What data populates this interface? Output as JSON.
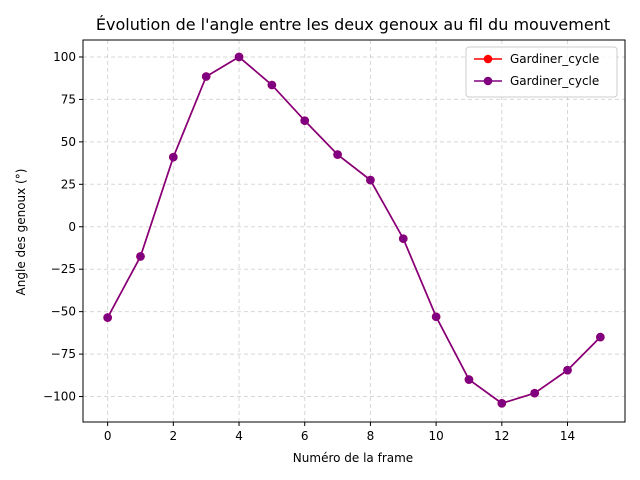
{
  "chart_data": {
    "type": "line",
    "title": "Évolution de l'angle entre les deux genoux au fil du mouvement",
    "xlabel": "Numéro de la frame",
    "ylabel": "Angle des genoux (°)",
    "xlim": [
      -0.75,
      15.75
    ],
    "ylim": [
      -115,
      110
    ],
    "xticks": [
      0,
      2,
      4,
      6,
      8,
      10,
      12,
      14
    ],
    "xtick_labels": [
      "0",
      "2",
      "4",
      "6",
      "8",
      "10",
      "12",
      "14"
    ],
    "yticks": [
      -100,
      -75,
      -50,
      -25,
      0,
      25,
      50,
      75,
      100
    ],
    "ytick_labels": [
      "−100",
      "−75",
      "−50",
      "−25",
      "0",
      "25",
      "50",
      "75",
      "100"
    ],
    "grid": true,
    "legend_position": "top-right",
    "x": [
      0,
      1,
      2,
      3,
      4,
      5,
      6,
      7,
      8,
      9,
      10,
      11,
      12,
      13,
      14,
      15
    ],
    "series": [
      {
        "name": "Gardiner_cycle",
        "color": "#ff0000",
        "marker": "circle",
        "values": [
          -53.5,
          -17.5,
          41,
          88.5,
          100,
          83.5,
          62.5,
          42.5,
          27.5,
          -7,
          -53,
          -90,
          -104,
          -98,
          -84.5,
          -65
        ]
      },
      {
        "name": "Gardiner_cycle",
        "color": "#800080",
        "marker": "circle",
        "values": [
          -53.5,
          -17.5,
          41,
          88.5,
          100,
          83.5,
          62.5,
          42.5,
          27.5,
          -7,
          -53,
          -90,
          -104,
          -98,
          -84.5,
          -65
        ]
      }
    ]
  }
}
